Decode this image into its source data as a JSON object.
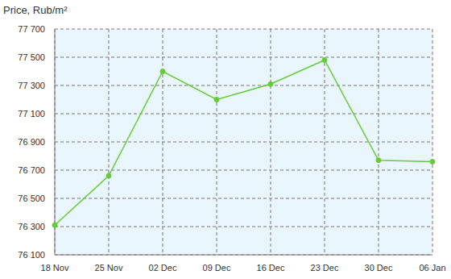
{
  "chart_data": {
    "type": "line",
    "title": "Price, Rub/m²",
    "categories": [
      "18 Nov",
      "25 Nov",
      "02 Dec",
      "09 Dec",
      "16 Dec",
      "23 Dec",
      "30 Dec",
      "06 Jan"
    ],
    "values": [
      76310,
      76660,
      77400,
      77200,
      77310,
      77480,
      76770,
      76760
    ],
    "color": "#66cc33",
    "marker": "circle",
    "ylim": [
      76100,
      77700
    ],
    "yticks": [
      {
        "value": 76100,
        "label": "76 100"
      },
      {
        "value": 76300,
        "label": "76 300"
      },
      {
        "value": 76500,
        "label": "76 500"
      },
      {
        "value": 76700,
        "label": "76 700"
      },
      {
        "value": 76900,
        "label": "76 900"
      },
      {
        "value": 77100,
        "label": "77 100"
      },
      {
        "value": 77300,
        "label": "77 300"
      },
      {
        "value": 77500,
        "label": "77 500"
      },
      {
        "value": 77700,
        "label": "77 700"
      }
    ],
    "grid": true
  }
}
